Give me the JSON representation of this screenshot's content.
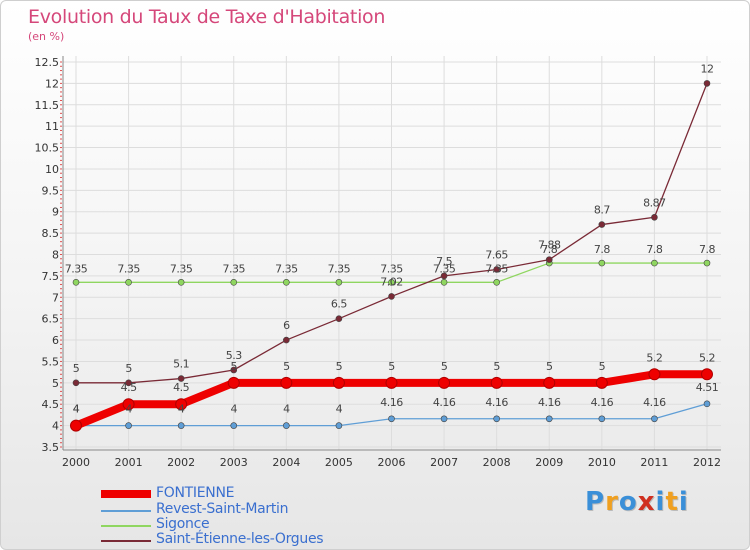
{
  "title": "Evolution du Taux de Taxe d'Habitation",
  "unit_label": "(en %)",
  "logo": {
    "text": "Proxiti",
    "letters": [
      "P",
      "r",
      "o",
      "x",
      "i",
      "t",
      "i"
    ],
    "colors": [
      "#3a8fd8",
      "#f0a020",
      "#3a8fd8",
      "#d03020",
      "#3a8fd8",
      "#f0a020",
      "#3a8fd8"
    ]
  },
  "chart_data": {
    "type": "line",
    "title": "Evolution du Taux de Taxe d'Habitation",
    "ylabel": "(en %)",
    "xlabel": "",
    "x": [
      "2000",
      "2001",
      "2002",
      "2003",
      "2004",
      "2005",
      "2006",
      "2007",
      "2008",
      "2009",
      "2010",
      "2011",
      "2012"
    ],
    "ylim": [
      3.5,
      12.5
    ],
    "yticks": [
      "3.5",
      "4",
      "4.5",
      "5",
      "5.5",
      "6",
      "6.5",
      "7",
      "7.5",
      "8",
      "8.5",
      "9",
      "9.5",
      "10",
      "10.5",
      "11",
      "11.5",
      "12",
      "12.5"
    ],
    "grid": true,
    "legend_position": "bottom-left",
    "series": [
      {
        "name": "FONTIENNE",
        "color": "#ee0000",
        "values": [
          4,
          4.5,
          4.5,
          5,
          5,
          5,
          5,
          5,
          5,
          5,
          5,
          5.2,
          5.2
        ],
        "labels": [
          "4",
          "4.5",
          "4.5",
          "5",
          "5",
          "5",
          "5",
          "5",
          "5",
          "5",
          "5",
          "5.2",
          "5.2"
        ]
      },
      {
        "name": "Revest-Saint-Martin",
        "color": "#5f9ed6",
        "values": [
          4,
          4,
          4,
          4,
          4,
          4,
          4.16,
          4.16,
          4.16,
          4.16,
          4.16,
          4.16,
          4.51
        ],
        "labels": [
          "4",
          "4",
          "4",
          "4",
          "4",
          "4",
          "4.16",
          "4.16",
          "4.16",
          "4.16",
          "4.16",
          "4.16",
          "4.51"
        ]
      },
      {
        "name": "Sigonce",
        "color": "#8fd660",
        "values": [
          7.35,
          7.35,
          7.35,
          7.35,
          7.35,
          7.35,
          7.35,
          7.35,
          7.35,
          7.8,
          7.8,
          7.8,
          7.8
        ],
        "labels": [
          "7.35",
          "7.35",
          "7.35",
          "7.35",
          "7.35",
          "7.35",
          "7.35",
          "7.35",
          "7.35",
          "7.8",
          "7.8",
          "7.8",
          "7.8"
        ]
      },
      {
        "name": "Saint-Étienne-les-Orgues",
        "color": "#7a2a36",
        "values": [
          5,
          5,
          5.1,
          5.3,
          6,
          6.5,
          7.02,
          7.5,
          7.65,
          7.88,
          8.7,
          8.87,
          12
        ],
        "labels": [
          "5",
          "5",
          "5.1",
          "5.3",
          "6",
          "6.5",
          "7.02",
          "7.5",
          "7.65",
          "7.88",
          "8.7",
          "8.87",
          "12"
        ]
      }
    ]
  }
}
